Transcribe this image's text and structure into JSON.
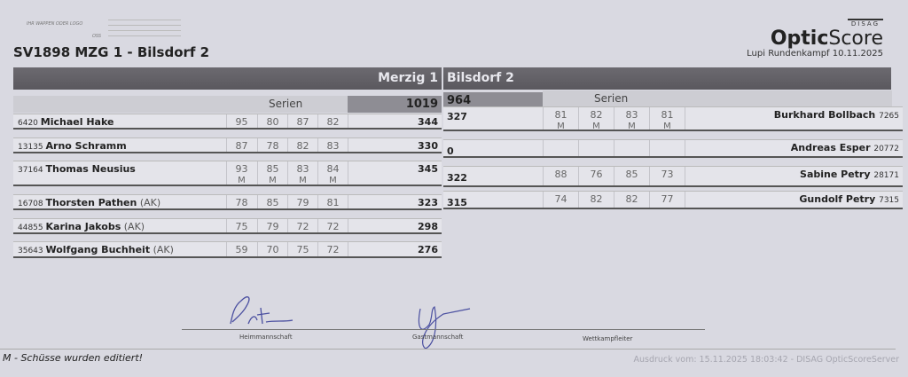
{
  "logo": {
    "placeholder": "IHR WAPPEN ODER LOGO",
    "oss": "OSS"
  },
  "title": "SV1898 MZG 1 - Bilsdorf 2",
  "brand": {
    "top": "DISAG",
    "bold": "Optic",
    "rest": "Score"
  },
  "event": "Lupi Rundenkampf  10.11.2025",
  "home": {
    "team": "Merzig 1",
    "series_label": "Serien",
    "total": "1019",
    "rows": [
      {
        "id": "6420",
        "name": "Michael Hake",
        "ak": "",
        "series": [
          "95",
          "80",
          "87",
          "82"
        ],
        "edited": false,
        "total": "344"
      },
      {
        "id": "13135",
        "name": "Arno Schramm",
        "ak": "",
        "series": [
          "87",
          "78",
          "82",
          "83"
        ],
        "edited": false,
        "total": "330"
      },
      {
        "id": "37164",
        "name": "Thomas Neusius",
        "ak": "",
        "series": [
          "93",
          "85",
          "83",
          "84"
        ],
        "edited": true,
        "total": "345"
      },
      {
        "id": "16708",
        "name": "Thorsten Pathen",
        "ak": "(AK)",
        "series": [
          "78",
          "85",
          "79",
          "81"
        ],
        "edited": false,
        "total": "323"
      },
      {
        "id": "44855",
        "name": "Karina Jakobs",
        "ak": "(AK)",
        "series": [
          "75",
          "79",
          "72",
          "72"
        ],
        "edited": false,
        "total": "298"
      },
      {
        "id": "35643",
        "name": "Wolfgang Buchheit",
        "ak": "(AK)",
        "series": [
          "59",
          "70",
          "75",
          "72"
        ],
        "edited": false,
        "total": "276"
      }
    ]
  },
  "guest": {
    "team": "Bilsdorf 2",
    "series_label": "Serien",
    "total": "964",
    "rows": [
      {
        "id": "7265",
        "name": "Burkhard Bollbach",
        "series": [
          "81",
          "82",
          "83",
          "81"
        ],
        "edited": true,
        "total": "327"
      },
      {
        "id": "20772",
        "name": "Andreas Esper",
        "series": [
          "",
          "",
          "",
          ""
        ],
        "edited": false,
        "total": "0"
      },
      {
        "id": "28171",
        "name": "Sabine Petry",
        "series": [
          "88",
          "76",
          "85",
          "73"
        ],
        "edited": false,
        "total": "322"
      },
      {
        "id": "7315",
        "name": "Gundolf Petry",
        "series": [
          "74",
          "82",
          "82",
          "77"
        ],
        "edited": false,
        "total": "315"
      }
    ]
  },
  "edited_mark": "M",
  "signatures": {
    "home": "Heimmannschaft",
    "guest": "Gastmannschaft",
    "official": "Wettkampfleiter"
  },
  "footnote": "M - Schüsse wurden editiert!",
  "printed": "Ausdruck vom: 15.11.2025 18:03:42 - DISAG OpticScoreServer"
}
